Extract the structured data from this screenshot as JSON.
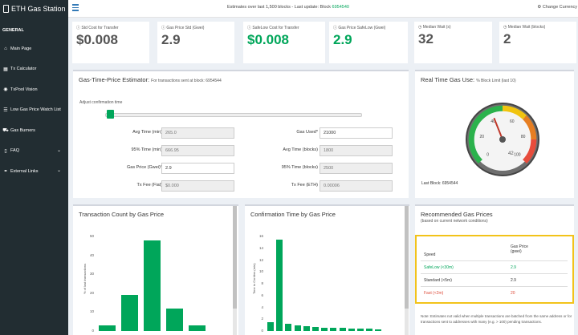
{
  "brand": {
    "title": "ETH Gas Station"
  },
  "nav": {
    "header": "GENERAL",
    "items": [
      {
        "label": "Main Page",
        "icon": "home-icon",
        "glyph": "⌂"
      },
      {
        "label": "Tx Calculator",
        "icon": "calculator-icon",
        "glyph": "▦"
      },
      {
        "label": "TxPool Vision",
        "icon": "eye-icon",
        "glyph": "◉"
      },
      {
        "label": "Low Gas Price Watch List",
        "icon": "list-icon",
        "glyph": "☰"
      },
      {
        "label": "Gas Burners",
        "icon": "car-icon",
        "glyph": "⛟"
      },
      {
        "label": "FAQ",
        "icon": "book-icon",
        "glyph": "▯"
      },
      {
        "label": "External Links",
        "icon": "link-icon",
        "glyph": "⚭"
      }
    ]
  },
  "topbar": {
    "estimate_text": "Estimates over last 1,500 blocks - Last update: Block",
    "block": "6954540",
    "currency": "Change Currency"
  },
  "stats": [
    {
      "label": "Std Cost for Transfer",
      "value": "$0.008",
      "green": false
    },
    {
      "label": "Gas Price Std (Gwei)",
      "value": "2.9",
      "green": false
    },
    {
      "label": "SafeLow Cost for Transfer",
      "value": "$0.008",
      "green": true
    },
    {
      "label": "Gas Price SafeLow (Gwei)",
      "value": "2.9",
      "green": true
    },
    {
      "label": "Median Wait (s)",
      "value": "32",
      "green": false
    },
    {
      "label": "Median Wait (blocks)",
      "value": "2",
      "green": false
    }
  ],
  "estimator": {
    "title": "Gas-Time-Price Estimator:",
    "subtitle": "For transactions sent at block: 6954544",
    "slider_label": "Adjust confirmation time",
    "left_fields": [
      {
        "label": "Avg Time (min)",
        "value": "265.0"
      },
      {
        "label": "95% Time (min)",
        "value": "666.95"
      },
      {
        "label": "Gas Price (Gwei)*",
        "value": "2.9"
      },
      {
        "label": "Tx Fee (Fiat)",
        "value": "$0.000"
      }
    ],
    "right_fields": [
      {
        "label": "Gas Used*",
        "value": "21000"
      },
      {
        "label": "Avg Time (blocks)",
        "value": "1800"
      },
      {
        "label": "95% Time (blocks)",
        "value": "2500"
      },
      {
        "label": "Tx Fee (ETH)",
        "value": "0.00006"
      }
    ]
  },
  "gauge": {
    "title": "Real Time Gas Use:",
    "subtitle": "% Block Limit (last 10)",
    "ticks": [
      "0",
      "20",
      "40",
      "60",
      "80",
      "100"
    ],
    "value": 42,
    "last_block": "Last Block: 6954544"
  },
  "count_chart": {
    "title": "Transaction Count by Gas Price",
    "ylabel": "% of last transactions",
    "yticks": [
      "50",
      "40",
      "30",
      "20",
      "10",
      "0"
    ]
  },
  "confirm_chart": {
    "title": "Confirmation Time by Gas Price",
    "ylabel": "Time to Confirm (min)",
    "yticks": [
      "16",
      "14",
      "12",
      "10",
      "8",
      "6",
      "4",
      "2",
      "0"
    ]
  },
  "chart_data": [
    {
      "type": "bar",
      "title": "Transaction Count by Gas Price",
      "ylabel": "% of last transactions",
      "ylim": [
        0,
        50
      ],
      "values": [
        3,
        19,
        48,
        12,
        3
      ]
    },
    {
      "type": "bar",
      "title": "Confirmation Time by Gas Price",
      "ylabel": "Time to Confirm (min)",
      "ylim": [
        0,
        16
      ],
      "values": [
        1.5,
        15.5,
        1.2,
        0.9,
        0.8,
        0.7,
        0.6,
        0.5,
        0.5,
        0.4,
        0.4,
        0.4,
        0.3
      ]
    }
  ],
  "recommended": {
    "title": "Recommended Gas Prices",
    "subtitle": "(based on current network conditions)",
    "col_speed": "Speed",
    "col_price_1": "Gas Price",
    "col_price_2": "(gwei)",
    "rows": [
      {
        "speed": "SafeLow (<30m)",
        "price": "2.9",
        "color": "#00a65a"
      },
      {
        "speed": "Standard (<5m)",
        "price": "2.9",
        "color": "#333333"
      },
      {
        "speed": "Fast (<2m)",
        "price": "20",
        "color": "#dd4b39"
      }
    ],
    "note": "Note: Estimates not valid when multiple transactions are batched from the same address or for transactions sent to addresses with many (e.g. > 100) pending transactions."
  },
  "colors": {
    "accent": "#00a65a",
    "highlight": "#f2c31a",
    "sidebar": "#222d32"
  }
}
